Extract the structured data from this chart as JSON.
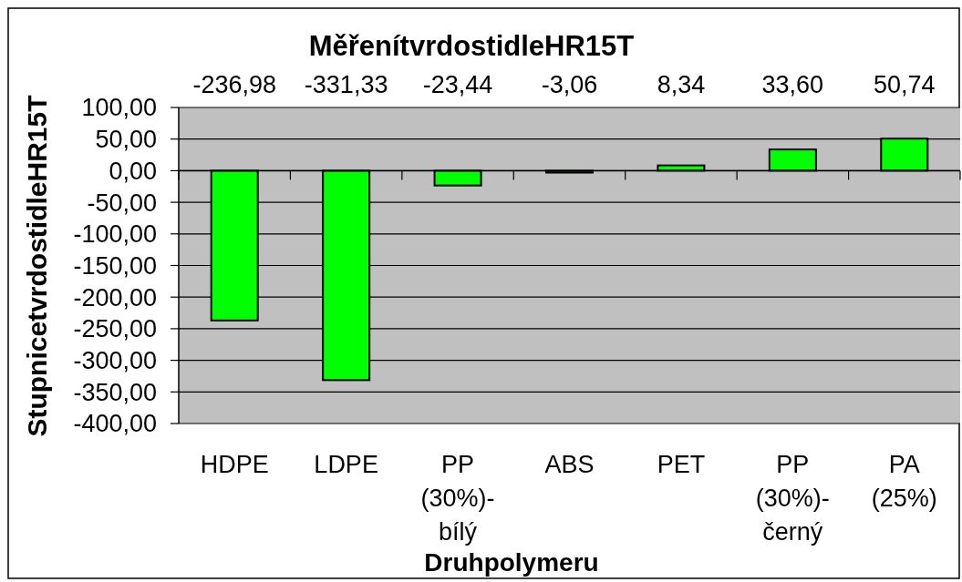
{
  "chart_data": {
    "type": "bar",
    "title": "MěřenítvrdostidleHR15T",
    "xlabel": "Druhpolymeru",
    "ylabel": "StupnicetvrdostidleHR15T",
    "categories": [
      "HDPE",
      "LDPE",
      "PP (30%)-bílý",
      "ABS",
      "PET",
      "PP (30%)-černý",
      "PA (25%)"
    ],
    "values": [
      -236.98,
      -331.33,
      -23.44,
      -3.06,
      8.34,
      33.6,
      50.74
    ],
    "value_labels": [
      "-236,98",
      "-331,33",
      "-23,44",
      "-3,06",
      "8,34",
      "33,60",
      "50,74"
    ],
    "color": "#00ff00",
    "ylim": [
      -400,
      100
    ],
    "yticks": [
      {
        "value": -400,
        "label": "-400,00"
      },
      {
        "value": -350,
        "label": "-350,00"
      },
      {
        "value": -300,
        "label": "-300,00"
      },
      {
        "value": -250,
        "label": "-250,00"
      },
      {
        "value": -200,
        "label": "-200,00"
      },
      {
        "value": -150,
        "label": "-150,00"
      },
      {
        "value": -100,
        "label": "-100,00"
      },
      {
        "value": -50,
        "label": "-50,00"
      },
      {
        "value": 0,
        "label": "0,00"
      },
      {
        "value": 50,
        "label": "50,00"
      },
      {
        "value": 100,
        "label": "100,00"
      }
    ],
    "grid": "y"
  }
}
